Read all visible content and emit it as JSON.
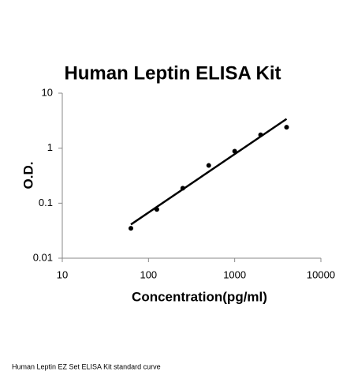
{
  "chart_data": {
    "type": "scatter",
    "title": "Human Leptin ELISA Kit",
    "x_label": "Concentration(pg/ml)",
    "y_label": "O.D.",
    "caption": "Human Leptin EZ Set ELISA Kit standard curve",
    "x": [
      62.5,
      125,
      250,
      500,
      1000,
      2000,
      4000
    ],
    "values": [
      0.035,
      0.077,
      0.187,
      0.485,
      0.88,
      1.75,
      2.4
    ],
    "color": "#000000",
    "fit": {
      "x": [
        62.5,
        4000
      ],
      "values": [
        0.041,
        3.4
      ]
    },
    "xlog": true,
    "ylog": true,
    "xlim": [
      10,
      10000
    ],
    "xticks": [
      10,
      100,
      1000,
      10000
    ],
    "ylim": [
      0.01,
      10
    ],
    "yticks": [
      0.01,
      0.1,
      1,
      10
    ]
  }
}
